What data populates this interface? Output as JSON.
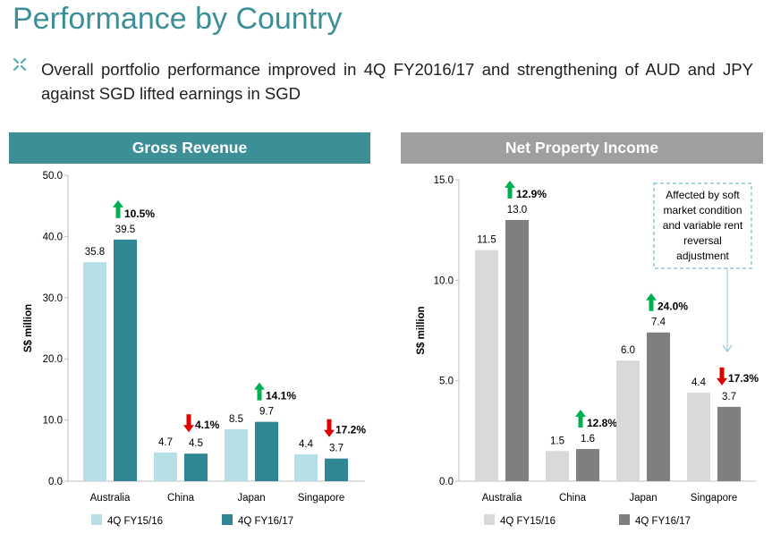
{
  "page": {
    "title": "Performance by Country",
    "bullet": "Overall portfolio performance improved in 4Q FY2016/17 and strengthening of AUD and JPY against SGD lifted earnings in SGD"
  },
  "colors": {
    "title": "#3d8f97",
    "gross_header": "#3d8f97",
    "npi_header": "#9f9f9f",
    "gross_prev": "#b7dfe7",
    "gross_curr": "#2f8795",
    "npi_prev": "#d9d9d9",
    "npi_curr": "#7f7f7f",
    "arrow_up": "#00b050",
    "arrow_down": "#e00000",
    "callout_border": "#8fc6d6"
  },
  "chart_data": [
    {
      "type": "bar",
      "title": "Gross Revenue",
      "ylabel": "S$ million",
      "ylim": [
        0,
        50
      ],
      "yticks": [
        "0.0",
        "10.0",
        "20.0",
        "30.0",
        "40.0",
        "50.0"
      ],
      "categories": [
        "Australia",
        "China",
        "Japan",
        "Singapore"
      ],
      "series": [
        {
          "name": "4Q FY15/16",
          "values": [
            35.8,
            4.7,
            8.5,
            4.4
          ],
          "labels": [
            "35.8",
            "4.7",
            "8.5",
            "4.4"
          ]
        },
        {
          "name": "4Q FY16/17",
          "values": [
            39.5,
            4.5,
            9.7,
            3.7
          ],
          "labels": [
            "39.5",
            "4.5",
            "9.7",
            "3.7"
          ]
        }
      ],
      "changes": [
        {
          "direction": "up",
          "label": "10.5%"
        },
        {
          "direction": "down",
          "label": "4.1%"
        },
        {
          "direction": "up",
          "label": "14.1%"
        },
        {
          "direction": "down",
          "label": "17.2%"
        }
      ],
      "legend": "bottom"
    },
    {
      "type": "bar",
      "title": "Net Property Income",
      "ylabel": "S$ million",
      "ylim": [
        0,
        15
      ],
      "yticks": [
        "0.0",
        "5.0",
        "10.0",
        "15.0"
      ],
      "categories": [
        "Australia",
        "China",
        "Japan",
        "Singapore"
      ],
      "series": [
        {
          "name": "4Q FY15/16",
          "values": [
            11.5,
            1.5,
            6.0,
            4.4
          ],
          "labels": [
            "11.5",
            "1.5",
            "6.0",
            "4.4"
          ]
        },
        {
          "name": "4Q FY16/17",
          "values": [
            13.0,
            1.6,
            7.4,
            3.7
          ],
          "labels": [
            "13.0",
            "1.6",
            "7.4",
            "3.7"
          ]
        }
      ],
      "changes": [
        {
          "direction": "up",
          "label": "12.9%"
        },
        {
          "direction": "up",
          "label": "12.8%"
        },
        {
          "direction": "up",
          "label": "24.0%"
        },
        {
          "direction": "down",
          "label": "17.3%"
        }
      ],
      "annotation": {
        "lines": [
          "Affected by soft",
          "market condition",
          "and variable rent",
          "reversal",
          "adjustment"
        ],
        "target": "Singapore"
      },
      "legend": "bottom"
    }
  ]
}
